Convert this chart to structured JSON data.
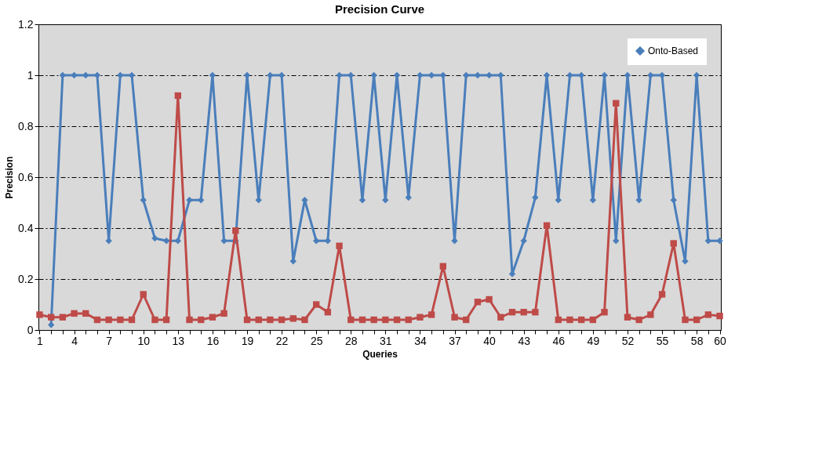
{
  "chart_data": {
    "type": "line",
    "title": "Precision Curve",
    "xlabel": "Queries",
    "ylabel": "Precision",
    "categories": [
      "1",
      null,
      null,
      "4",
      null,
      null,
      "7",
      null,
      null,
      "10",
      null,
      null,
      "13",
      null,
      null,
      "16",
      null,
      null,
      "19",
      null,
      null,
      "22",
      null,
      null,
      "25",
      null,
      null,
      "28",
      null,
      null,
      "31",
      null,
      null,
      "34",
      null,
      null,
      "37",
      null,
      null,
      "40",
      null,
      null,
      "43",
      null,
      null,
      "46",
      null,
      null,
      "49",
      null,
      null,
      "52",
      null,
      null,
      "55",
      null,
      null,
      "58",
      null,
      "60"
    ],
    "series": [
      {
        "name": "Onto-Based",
        "color": "#4a7ebb",
        "marker": "diamond",
        "values": [
          null,
          0.02,
          1,
          1,
          1,
          1,
          0.35,
          1,
          1,
          0.51,
          0.36,
          0.35,
          0.35,
          0.51,
          0.51,
          1,
          0.35,
          0.35,
          1,
          0.51,
          1,
          1,
          0.27,
          0.51,
          0.35,
          0.35,
          1,
          1,
          0.51,
          1,
          0.51,
          1,
          0.52,
          1,
          1,
          1,
          0.35,
          1,
          1,
          1,
          1,
          0.22,
          0.35,
          0.52,
          1,
          0.51,
          1,
          1,
          0.51,
          1,
          0.35,
          1,
          0.51,
          1,
          1,
          0.51,
          0.27,
          1,
          0.35,
          0.35
        ]
      },
      {
        "color": "#be4b48",
        "marker": "square",
        "values": [
          0.06,
          0.05,
          0.05,
          0.065,
          0.065,
          0.04,
          0.04,
          0.04,
          0.04,
          0.14,
          0.04,
          0.04,
          0.92,
          0.04,
          0.04,
          0.05,
          0.065,
          0.39,
          0.04,
          0.04,
          0.04,
          0.04,
          0.045,
          0.04,
          0.1,
          0.07,
          0.33,
          0.04,
          0.04,
          0.04,
          0.04,
          0.04,
          0.04,
          0.05,
          0.06,
          0.25,
          0.05,
          0.04,
          0.11,
          0.12,
          0.05,
          0.07,
          0.07,
          0.07,
          0.41,
          0.04,
          0.04,
          0.04,
          0.04,
          0.07,
          0.89,
          0.05,
          0.04,
          0.06,
          0.14,
          0.34,
          0.04,
          0.04,
          0.06,
          0.055
        ]
      }
    ],
    "ylim": [
      0,
      1.2
    ],
    "yticks": [
      0,
      0.2,
      0.4,
      0.6,
      0.8,
      1,
      1.2
    ],
    "grid": "y",
    "legend": "top right",
    "line_style": "solid"
  }
}
